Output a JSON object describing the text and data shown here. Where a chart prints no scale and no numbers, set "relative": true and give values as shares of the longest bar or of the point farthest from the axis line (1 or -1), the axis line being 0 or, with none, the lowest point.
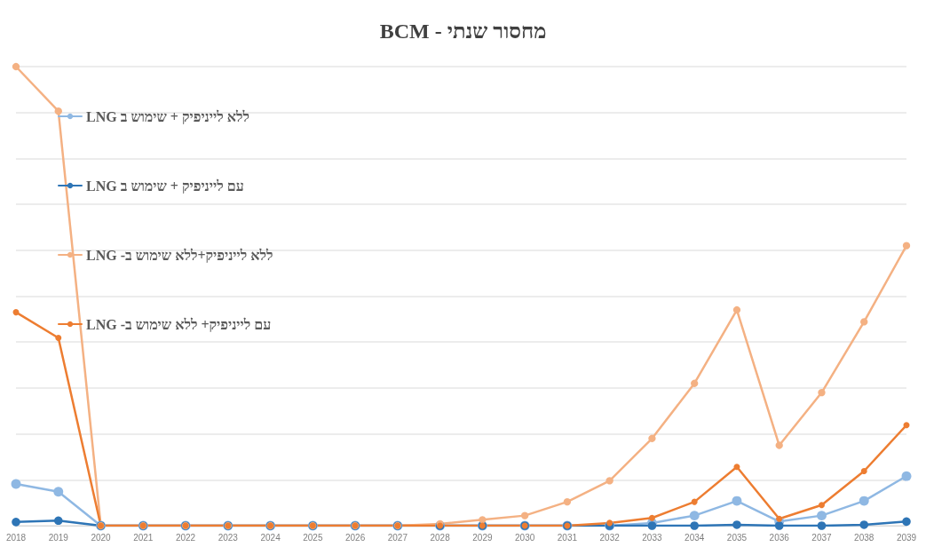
{
  "chart_data": {
    "type": "line",
    "title": "מחסור שנתי - BCM",
    "categories": [
      "2018",
      "2019",
      "2020",
      "2021",
      "2022",
      "2023",
      "2024",
      "2025",
      "2026",
      "2027",
      "2028",
      "2029",
      "2030",
      "2031",
      "2032",
      "2033",
      "2034",
      "2035",
      "2036",
      "2037",
      "2038",
      "2039"
    ],
    "relative": true,
    "grid": "y",
    "legend": "top left",
    "marker": "circle",
    "series": [
      {
        "name": "ללא לייניפיק + שימוש ב LNG",
        "color": "#8fb8e3",
        "values": [
          0.091,
          0.074,
          0,
          0,
          0,
          0,
          0,
          0,
          0,
          0,
          0,
          0,
          0,
          0,
          0,
          0.006,
          0.022,
          0.054,
          0.009,
          0.022,
          0.054,
          0.108
        ]
      },
      {
        "name": "עם לייניפיק + שימוש ב LNG",
        "color": "#2e75b6",
        "values": [
          0.008,
          0.011,
          0,
          0,
          0,
          0,
          0,
          0,
          0,
          0,
          0,
          0,
          0,
          0,
          0,
          0,
          0,
          0.002,
          0,
          0,
          0.002,
          0.009
        ]
      },
      {
        "name": "ללא לייניפיק+ללא שימוש ב- LNG",
        "color": "#f4b183",
        "values": [
          1,
          0.903,
          0,
          0,
          0,
          0,
          0,
          0,
          0,
          0,
          0.004,
          0.013,
          0.022,
          0.052,
          0.098,
          0.19,
          0.31,
          0.47,
          0.175,
          0.29,
          0.444,
          0.61
        ]
      },
      {
        "name": "עם לייניפיק+ ללא שימוש ב- LNG",
        "color": "#ed7d31",
        "values": [
          0.465,
          0.409,
          0,
          0,
          0,
          0,
          0,
          0,
          0,
          0,
          0,
          0,
          0,
          0,
          0.006,
          0.017,
          0.052,
          0.128,
          0.015,
          0.045,
          0.119,
          0.219
        ]
      }
    ]
  }
}
